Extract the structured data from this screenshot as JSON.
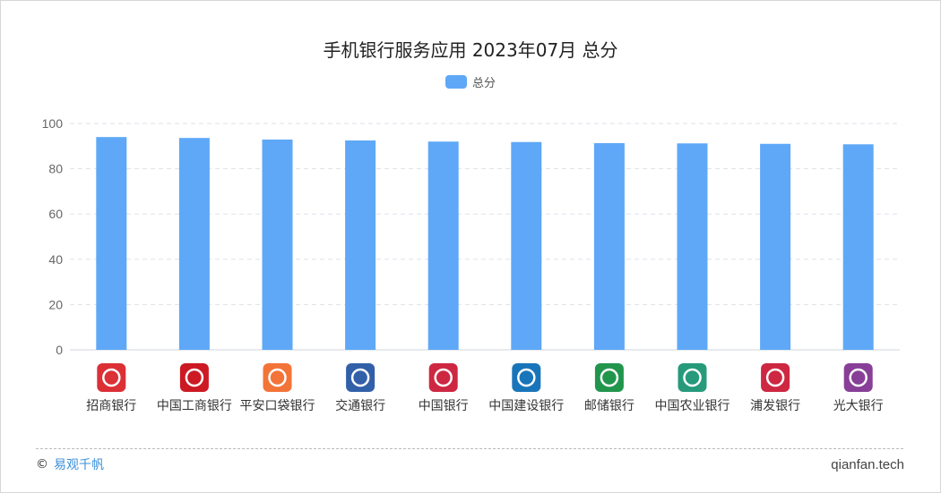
{
  "colors": {
    "bar": "#5ea8f7",
    "grid": "#dde2ea",
    "axis": "#cfd6df",
    "tick": "#666666"
  },
  "chart_data": {
    "type": "bar",
    "title": "手机银行服务应用 2023年07月 总分",
    "categories": [
      "招商银行",
      "中国工商银行",
      "平安口袋银行",
      "交通银行",
      "中国银行",
      "中国建设银行",
      "邮储银行",
      "中国农业银行",
      "浦发银行",
      "光大银行"
    ],
    "series": [
      {
        "name": "总分",
        "values": [
          94.0,
          93.6,
          92.9,
          92.5,
          92.0,
          91.8,
          91.3,
          91.2,
          91.0,
          90.8
        ]
      }
    ],
    "ylim": [
      0,
      100
    ],
    "yticks": [
      0,
      20,
      40,
      60,
      80,
      100
    ],
    "grid": true,
    "legend_position": "top-center",
    "category_icons": [
      "cmb-logo-icon",
      "icbc-logo-icon",
      "pingan-logo-icon",
      "bocom-logo-icon",
      "boc-logo-icon",
      "ccb-logo-icon",
      "psbc-logo-icon",
      "abc-logo-icon",
      "spdb-logo-icon",
      "ceb-logo-icon"
    ]
  },
  "footer": {
    "copyright_symbol": "©",
    "brand": "易观千帆",
    "site": "qianfan.tech"
  }
}
